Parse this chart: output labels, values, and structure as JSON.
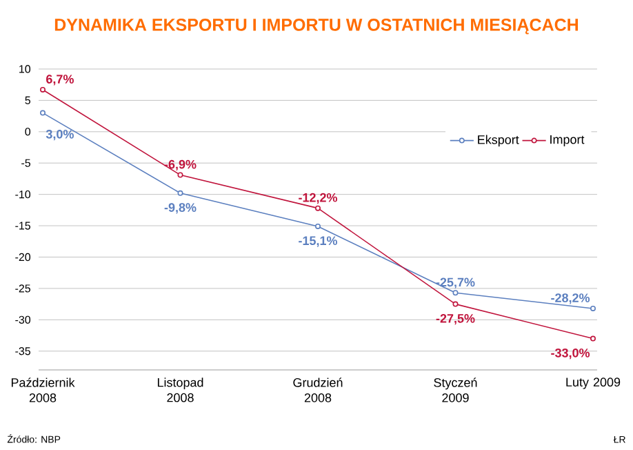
{
  "chart_data": {
    "type": "line",
    "title": "DYNAMIKA EKSPORTU I IMPORTU W OSTATNICH MIESIĄCACH",
    "categories": [
      "Październik 2008",
      "Listopad 2008",
      "Grudzień 2008",
      "Styczeń 2009",
      "Luty 2009"
    ],
    "series": [
      {
        "name": "Eksport",
        "color": "#5b7fbf",
        "values": [
          3.0,
          -9.8,
          -15.1,
          -25.7,
          -28.2
        ],
        "value_labels": [
          "3,0%",
          "-9,8%",
          "-15,1%",
          "-25,7%",
          "-28,2%"
        ]
      },
      {
        "name": "Import",
        "color": "#c0143c",
        "values": [
          6.7,
          -6.9,
          -12.2,
          -27.5,
          -33.0
        ],
        "value_labels": [
          "6,7%",
          "-6,9%",
          "-12,2%",
          "-27,5%",
          "-33,0%"
        ]
      }
    ],
    "ylim": [
      -38,
      10
    ],
    "yticks": [
      10,
      5,
      0,
      -5,
      -10,
      -15,
      -20,
      -25,
      -30,
      -35
    ],
    "grid": "y",
    "legend": "top right",
    "marker": "circle",
    "line_style": "solid",
    "annotations": [
      "Źródło: NBP",
      "ŁR"
    ]
  }
}
